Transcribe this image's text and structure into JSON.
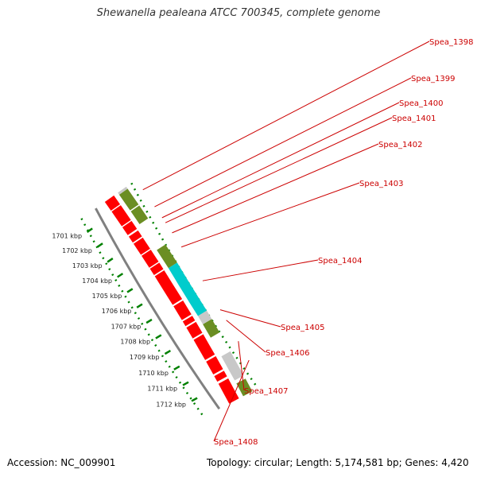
{
  "title": "Shewanella pealeana ATCC 700345, complete genome",
  "accession_text": "Accession: NC_009901",
  "summary_text": "Topology: circular; Length: 5,174,581 bp; Genes: 4,420",
  "colors": {
    "backbone": "#808080",
    "cds_forward": "#ff0000",
    "cds_reverse": "#6b8e23",
    "highlight": "#00cccc",
    "other": "#c8c8c8",
    "ruler": "#008000",
    "label": "#cc0000"
  },
  "kbp_ticks": [
    "1701 kbp",
    "1702 kbp",
    "1703 kbp",
    "1704 kbp",
    "1705 kbp",
    "1706 kbp",
    "1707 kbp",
    "1708 kbp",
    "1709 kbp",
    "1710 kbp",
    "1711 kbp",
    "1712 kbp"
  ],
  "gene_labels": [
    "Spea_1398",
    "Spea_1399",
    "Spea_1400",
    "Spea_1401",
    "Spea_1402",
    "Spea_1403",
    "Spea_1404",
    "Spea_1405",
    "Spea_1406",
    "Spea_1407",
    "Spea_1408"
  ]
}
